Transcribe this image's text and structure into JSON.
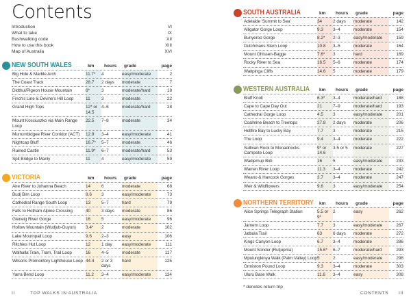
{
  "title": "Contents",
  "intro": [
    {
      "label": "Introduction",
      "page": "VI"
    },
    {
      "label": "What to take",
      "page": "IX"
    },
    {
      "label": "Bushwalking code",
      "page": "XII"
    },
    {
      "label": "How to use this book",
      "page": "XIII"
    },
    {
      "label": "Map of Australia",
      "page": "XVI"
    }
  ],
  "columns": {
    "km": "km",
    "hours": "hours",
    "grade": "grade",
    "page": "page"
  },
  "sections": [
    {
      "id": "nsw",
      "title": "NEW SOUTH WALES",
      "color": "#2a8f96",
      "shade": "#e3eef1",
      "rows": [
        [
          "Big Hole & Marble Arch",
          "11.7*",
          "4",
          "easy/moderate",
          "2"
        ],
        [
          "The Coast Track",
          "28.7",
          "2 days",
          "moderate",
          "7"
        ],
        [
          "Didthul/Pigeon House Mountain",
          "6*",
          "3",
          "moderate/hard",
          "18"
        ],
        [
          "Finch's Line & Devine's Hill Loop",
          "11",
          "3",
          "moderate",
          "22"
        ],
        [
          "Grand High Tops",
          "12* or 14.5",
          "4–6",
          "moderate/hard",
          "28"
        ],
        [
          "Mount Kosciuszko via Main Range Loop",
          "22.5",
          "7–8",
          "moderate",
          "34"
        ],
        [
          "Murrumbidgee River Corridor (ACT)",
          "12.9",
          "3–4",
          "easy/moderate",
          "41"
        ],
        [
          "Nightcap Bluff",
          "16.7*",
          "5–7",
          "moderate",
          "46"
        ],
        [
          "Ruined Castle",
          "11.9*",
          "6–7",
          "moderate/hard",
          "53"
        ],
        [
          "Spit Bridge to Manly",
          "11",
          "4",
          "easy/moderate",
          "59"
        ]
      ]
    },
    {
      "id": "vic",
      "title": "VICTORIA",
      "color": "#f4a522",
      "shade": "#fdf1dc",
      "rows": [
        [
          "Aire River to Johanna Beach",
          "14",
          "6",
          "moderate",
          "68"
        ],
        [
          "Budj Bim Loop",
          "8.6",
          "3",
          "easy/moderate",
          "73"
        ],
        [
          "Cathedral Range South Loop",
          "13",
          "5–7",
          "hard",
          "79"
        ],
        [
          "Falls to Hotham Alpine Crossing",
          "40",
          "3 days",
          "moderate",
          "86"
        ],
        [
          "Glenelg River Gorge",
          "16",
          "5",
          "easy/moderate",
          "96"
        ],
        [
          "Hollow Mountain (Wudjub-Guyun)",
          "3.4*",
          "2",
          "moderate",
          "102"
        ],
        [
          "Lake Mournpall Loop",
          "9.6",
          "2–3",
          "easy",
          "106"
        ],
        [
          "Ritchies Hut Loop",
          "12",
          "1 day",
          "easy/moderate",
          "111"
        ],
        [
          "Walhalla Train, Tram, Trail Loop",
          "16",
          "4–5",
          "moderate",
          "117"
        ],
        [
          "Wilsons Promontory Lighthouse Loop",
          "44.4",
          "2 or 3 days",
          "hard",
          "125"
        ],
        [
          "Yarra Bend Loop",
          "11.2",
          "3–4",
          "easy/moderate",
          "134"
        ]
      ]
    },
    {
      "id": "sa",
      "title": "SOUTH AUSTRALIA",
      "color": "#c8442c",
      "shade": "#fae4dc",
      "rows": [
        [
          "Adelaide 'Summit to Sea'",
          "34",
          "2 days",
          "moderate",
          "142"
        ],
        [
          "Alligator Gorge Loop",
          "9.3",
          "3–4",
          "moderate",
          "154"
        ],
        [
          "Bunyeroo Gorge",
          "8.2*",
          "2–3",
          "easy/moderate",
          "159"
        ],
        [
          "Dutchmans Stern Loop",
          "10.8",
          "3–5",
          "moderate",
          "164"
        ],
        [
          "Mount Ohlssen-Bagge",
          "7.6*",
          "3",
          "hard",
          "169"
        ],
        [
          "Rocky River to Sea",
          "16.5",
          "5–6",
          "moderate",
          "174"
        ],
        [
          "Waitpinga Cliffs",
          "14.6",
          "5",
          "moderate",
          "179"
        ]
      ]
    },
    {
      "id": "wa",
      "title": "WESTERN AUSTRALIA",
      "color": "#8b9a5c",
      "shade": "#eef0e7",
      "rows": [
        [
          "Bluff Knoll",
          "6.3*",
          "3–4",
          "moderate/hard",
          "188"
        ],
        [
          "Cape to Cape Day Out",
          "21",
          "7–9",
          "moderate/hard",
          "193"
        ],
        [
          "Cathedral Gorge Loop",
          "4.5",
          "3",
          "easy/moderate",
          "201"
        ],
        [
          "Coalmine Beach to Treetops",
          "27.8",
          "2 days",
          "moderate",
          "206"
        ],
        [
          "Hellfire Bay to Lucky Bay",
          "7.7",
          "3",
          "moderate",
          "215"
        ],
        [
          "The Loop",
          "9.4",
          "3–4",
          "moderate",
          "222"
        ],
        [
          "Sullivan Rock to Monadnocks Campsite Loop",
          "9* or 14.6",
          "3.5 or 5",
          "moderate",
          "227"
        ],
        [
          "Wadjemup Bidi",
          "16",
          "5",
          "easy/moderate",
          "233"
        ],
        [
          "Warren River Loop",
          "11.3",
          "3–4",
          "moderate",
          "242"
        ],
        [
          "Weano & Hancock Gorges",
          "3.7",
          "3–4",
          "moderate",
          "247"
        ],
        [
          "Weir & Wildflowers",
          "9.6",
          "3",
          "easy/moderate",
          "254"
        ]
      ]
    },
    {
      "id": "nt",
      "title": "NORTHERN TERRITORY",
      "color": "#f08b3b",
      "shade": "#fdeedf",
      "rows": [
        [
          "Alice Springs Telegraph Station",
          "5.5 or 9*",
          "2",
          "easy",
          "262"
        ],
        [
          "Jarnem Loop",
          "7.7",
          "3",
          "easy/moderate",
          "267"
        ],
        [
          "Jatbula Trail",
          "63",
          "6 days",
          "moderate",
          "272"
        ],
        [
          "Kings Canyon Loop",
          "6.7",
          "3–4",
          "moderate",
          "286"
        ],
        [
          "Mount Sonder (Rutjupma)",
          "15.6*",
          "6–7",
          "moderate/hard",
          "293"
        ],
        [
          "Mpulungkinya Walk (Palm Valley) Loop",
          "5",
          "2",
          "easy/moderate",
          "298"
        ],
        [
          "Ormiston Pound Loop",
          "9.3",
          "3–4",
          "moderate",
          "303"
        ],
        [
          "Uluru Base Walk",
          "11.6",
          "3–4",
          "easy",
          "308"
        ]
      ]
    }
  ],
  "footnote": "* denotes return trip",
  "footer_left": {
    "page": "II",
    "text": "TOP WALKS IN AUSTRALIA"
  },
  "footer_right": {
    "text": "CONTENTS",
    "page": "III"
  }
}
